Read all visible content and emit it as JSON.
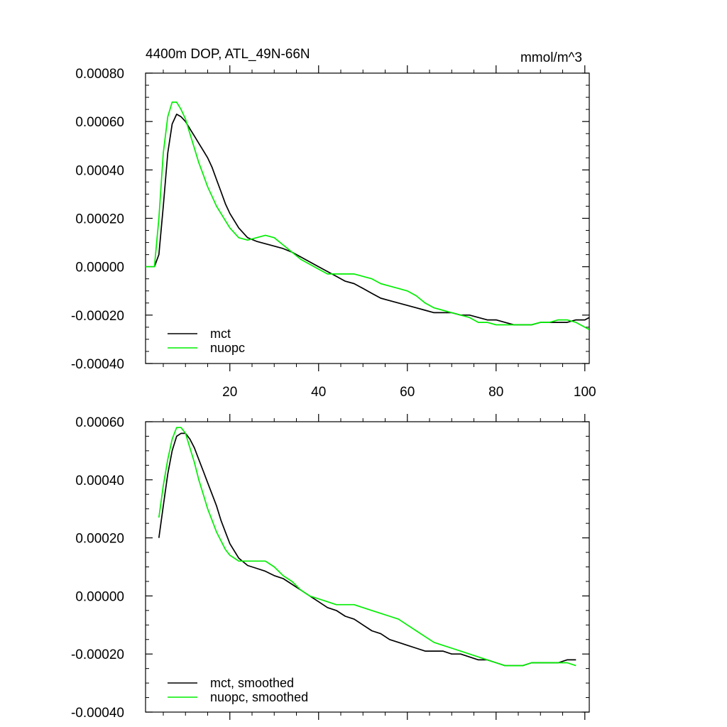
{
  "chart_data": [
    {
      "type": "line",
      "title": "4400m DOP, ATL_49N-66N",
      "units_label": "mmol/m^3",
      "xlabel": "",
      "ylabel": "",
      "xlim": [
        1,
        101
      ],
      "ylim": [
        -0.0004,
        0.0008
      ],
      "yticks": [
        -0.0004,
        -0.0002,
        0.0,
        0.0002,
        0.0004,
        0.0006,
        0.0008
      ],
      "ytick_labels": [
        "-0.00040",
        "-0.00020",
        "0.00000",
        "0.00020",
        "0.00040",
        "0.00060",
        "0.00080"
      ],
      "xticks": [
        20,
        40,
        60,
        80,
        100
      ],
      "xtick_labels": [
        "20",
        "40",
        "60",
        "80",
        "100"
      ],
      "legend": [
        "mct",
        "nuopc"
      ],
      "legend_position": "bottom-left",
      "series": [
        {
          "name": "mct",
          "color": "#000000",
          "x": [
            1,
            2,
            3,
            4,
            5,
            6,
            7,
            8,
            9,
            10,
            11,
            12,
            13,
            14,
            15,
            16,
            17,
            18,
            19,
            20,
            22,
            24,
            26,
            28,
            30,
            32,
            34,
            36,
            38,
            40,
            42,
            44,
            46,
            48,
            50,
            52,
            54,
            56,
            58,
            60,
            62,
            64,
            66,
            68,
            70,
            72,
            74,
            76,
            78,
            80,
            82,
            84,
            86,
            88,
            90,
            92,
            94,
            96,
            98,
            100,
            101
          ],
          "y": [
            0.0,
            0.0,
            0.0,
            5e-05,
            0.00025,
            0.00047,
            0.00059,
            0.00063,
            0.00062,
            0.0006,
            0.00057,
            0.00054,
            0.00051,
            0.00048,
            0.00045,
            0.00041,
            0.00036,
            0.00031,
            0.00026,
            0.00022,
            0.00016,
            0.00012,
            0.000105,
            9.5e-05,
            8.5e-05,
            7.5e-05,
            6e-05,
            4e-05,
            2e-05,
            0.0,
            -2e-05,
            -4e-05,
            -6e-05,
            -7e-05,
            -9e-05,
            -0.00011,
            -0.00013,
            -0.00014,
            -0.00015,
            -0.00016,
            -0.00017,
            -0.00018,
            -0.00019,
            -0.00019,
            -0.00019,
            -0.0002,
            -0.0002,
            -0.00021,
            -0.00022,
            -0.00022,
            -0.00023,
            -0.00024,
            -0.00024,
            -0.00024,
            -0.00023,
            -0.00023,
            -0.00023,
            -0.00023,
            -0.00022,
            -0.00022,
            -0.00021
          ]
        },
        {
          "name": "nuopc",
          "color": "#00ee00",
          "x": [
            1,
            2,
            3,
            4,
            5,
            6,
            7,
            8,
            9,
            10,
            11,
            12,
            13,
            14,
            15,
            16,
            17,
            18,
            19,
            20,
            22,
            24,
            26,
            28,
            30,
            32,
            34,
            36,
            38,
            40,
            42,
            44,
            46,
            48,
            50,
            52,
            54,
            56,
            58,
            60,
            62,
            64,
            66,
            68,
            70,
            72,
            74,
            76,
            78,
            80,
            82,
            84,
            86,
            88,
            90,
            92,
            94,
            96,
            98,
            100,
            101
          ],
          "y": [
            0.0,
            0.0,
            0.0,
            0.0002,
            0.00047,
            0.00062,
            0.00068,
            0.00068,
            0.00065,
            0.00061,
            0.00055,
            0.00049,
            0.00043,
            0.00038,
            0.00033,
            0.00029,
            0.00025,
            0.00022,
            0.00019,
            0.00016,
            0.00012,
            0.00011,
            0.00012,
            0.00013,
            0.00012,
            9e-05,
            6e-05,
            3e-05,
            1e-05,
            -1e-05,
            -3e-05,
            -3e-05,
            -3e-05,
            -3e-05,
            -4e-05,
            -5e-05,
            -7e-05,
            -8e-05,
            -9e-05,
            -0.0001,
            -0.00012,
            -0.00015,
            -0.00017,
            -0.00018,
            -0.00019,
            -0.0002,
            -0.00021,
            -0.00023,
            -0.00023,
            -0.00024,
            -0.00024,
            -0.00024,
            -0.00024,
            -0.00024,
            -0.00023,
            -0.00023,
            -0.00022,
            -0.00022,
            -0.00023,
            -0.00025,
            -0.00026
          ]
        }
      ]
    },
    {
      "type": "line",
      "title": "",
      "xlabel": "",
      "ylabel": "",
      "xlim": [
        1,
        101
      ],
      "ylim": [
        -0.0004,
        0.0006
      ],
      "yticks": [
        -0.0004,
        -0.0002,
        0.0,
        0.0002,
        0.0004,
        0.0006
      ],
      "ytick_labels": [
        "-0.00040",
        "-0.00020",
        "0.00000",
        "0.00020",
        "0.00040",
        "0.00060"
      ],
      "xticks": [
        20,
        40,
        60,
        80,
        100
      ],
      "xtick_labels": [],
      "legend": [
        "mct, smoothed",
        "nuopc, smoothed"
      ],
      "legend_position": "bottom-left",
      "series": [
        {
          "name": "mct, smoothed",
          "color": "#000000",
          "x": [
            4,
            5,
            6,
            7,
            8,
            9,
            10,
            11,
            12,
            13,
            14,
            15,
            16,
            17,
            18,
            19,
            20,
            22,
            24,
            26,
            28,
            30,
            32,
            34,
            36,
            38,
            40,
            42,
            44,
            46,
            48,
            50,
            52,
            54,
            56,
            58,
            60,
            62,
            64,
            66,
            68,
            70,
            72,
            74,
            76,
            78,
            80,
            82,
            84,
            86,
            88,
            90,
            92,
            94,
            96,
            98
          ],
          "y": [
            0.0002,
            0.00031,
            0.00042,
            0.0005,
            0.00055,
            0.00056,
            0.00056,
            0.00054,
            0.00051,
            0.00047,
            0.00043,
            0.00039,
            0.00035,
            0.00031,
            0.00026,
            0.00022,
            0.00018,
            0.00013,
            0.000105,
            9.5e-05,
            8.5e-05,
            7e-05,
            6e-05,
            4e-05,
            2e-05,
            0.0,
            -2e-05,
            -4e-05,
            -5e-05,
            -7e-05,
            -8e-05,
            -0.0001,
            -0.00012,
            -0.00013,
            -0.00015,
            -0.00016,
            -0.00017,
            -0.00018,
            -0.00019,
            -0.00019,
            -0.00019,
            -0.0002,
            -0.0002,
            -0.00021,
            -0.00022,
            -0.00022,
            -0.00023,
            -0.00024,
            -0.00024,
            -0.00024,
            -0.00023,
            -0.00023,
            -0.00023,
            -0.00023,
            -0.00022,
            -0.00022
          ]
        },
        {
          "name": "nuopc, smoothed",
          "color": "#00ee00",
          "x": [
            4,
            5,
            6,
            7,
            8,
            9,
            10,
            11,
            12,
            13,
            14,
            15,
            16,
            17,
            18,
            19,
            20,
            22,
            24,
            26,
            28,
            30,
            32,
            34,
            36,
            38,
            40,
            42,
            44,
            46,
            48,
            50,
            52,
            54,
            56,
            58,
            60,
            62,
            64,
            66,
            68,
            70,
            72,
            74,
            76,
            78,
            80,
            82,
            84,
            86,
            88,
            90,
            92,
            94,
            96,
            98
          ],
          "y": [
            0.00027,
            0.00038,
            0.00047,
            0.00054,
            0.00058,
            0.00058,
            0.00056,
            0.00051,
            0.00046,
            0.0004,
            0.00035,
            0.0003,
            0.00026,
            0.00022,
            0.00019,
            0.00016,
            0.00014,
            0.00012,
            0.00012,
            0.00012,
            0.00012,
            0.0001,
            7e-05,
            5e-05,
            2e-05,
            0.0,
            -1e-05,
            -2e-05,
            -3e-05,
            -3e-05,
            -3e-05,
            -4e-05,
            -5e-05,
            -6e-05,
            -7e-05,
            -8e-05,
            -0.0001,
            -0.00012,
            -0.00014,
            -0.00016,
            -0.00017,
            -0.00018,
            -0.00019,
            -0.0002,
            -0.00021,
            -0.00022,
            -0.00023,
            -0.00024,
            -0.00024,
            -0.00024,
            -0.00023,
            -0.00023,
            -0.00023,
            -0.00023,
            -0.00023,
            -0.00024
          ]
        }
      ]
    }
  ]
}
